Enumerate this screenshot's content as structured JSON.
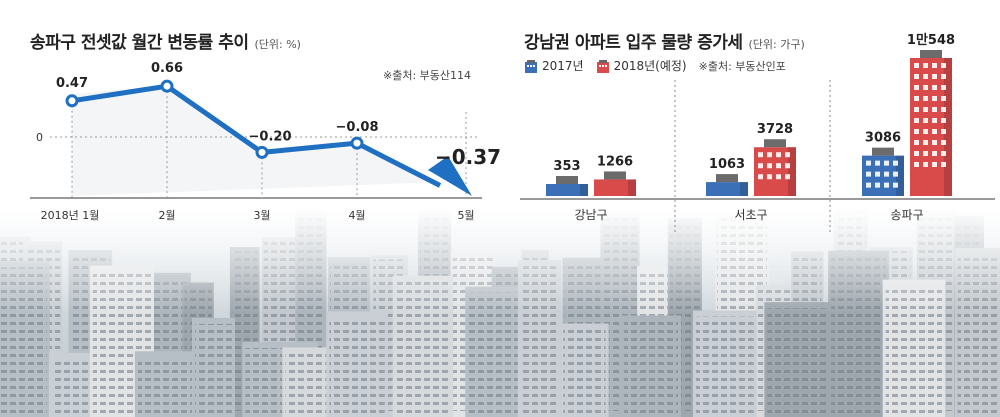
{
  "left": {
    "title": "송파구 전셋값 월간 변동률 추이",
    "unit": "(단위: %)",
    "source": "※출처: 부동산114"
  },
  "right": {
    "title": "강남권 아파트 입주 물량 증가세",
    "unit": "(단위: 가구)",
    "legend": [
      "2017년",
      "2018년(예정)"
    ],
    "source": "※출처: 부동산인포"
  },
  "colors": {
    "line": "#1f6fc2",
    "blue_bar": "#3b6fb6",
    "red_bar": "#d94a4a"
  },
  "chart_data": [
    {
      "type": "line",
      "title": "송파구 전셋값 월간 변동률 추이",
      "categories": [
        "2018년 1월",
        "2월",
        "3월",
        "4월",
        "5월"
      ],
      "values": [
        0.47,
        0.66,
        -0.2,
        -0.08,
        -0.37
      ],
      "value_labels": [
        "0.47",
        "0.66",
        "−0.20",
        "−0.08",
        "−0.37"
      ],
      "zero_label": "0",
      "ylim": [
        -0.37,
        0.66
      ]
    },
    {
      "type": "bar",
      "title": "강남권 아파트 입주 물량 증가세",
      "categories": [
        "강남구",
        "서초구",
        "송파구"
      ],
      "series": [
        {
          "name": "2017년",
          "values": [
            353,
            1063,
            3086
          ],
          "labels": [
            "353",
            "1063",
            "3086"
          ]
        },
        {
          "name": "2018년(예정)",
          "values": [
            1266,
            3728,
            10548
          ],
          "labels": [
            "1266",
            "3728",
            "1만548"
          ]
        }
      ]
    }
  ]
}
